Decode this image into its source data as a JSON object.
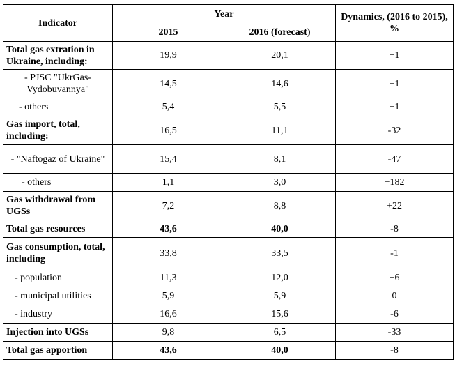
{
  "table": {
    "header": {
      "indicator": "Indicator",
      "year": "Year",
      "y2015": "2015",
      "y2016": "2016 (forecast)",
      "dynamics": "Dynamics, (2016 to 2015), %"
    },
    "rows": [
      {
        "label": "Total gas extration in Ukraine, including:",
        "v2015": "19,9",
        "v2016": "20,1",
        "dyn": "+1"
      },
      {
        "label": "- PJSC \"UkrGas-Vydobuvannya\"",
        "v2015": "14,5",
        "v2016": "14,6",
        "dyn": "+1"
      },
      {
        "label": "- others",
        "v2015": "5,4",
        "v2016": "5,5",
        "dyn": "+1"
      },
      {
        "label": "Gas import, total, including:",
        "v2015": "16,5",
        "v2016": "11,1",
        "dyn": "-32"
      },
      {
        "label": "- \"Naftogaz of Ukraine\"",
        "v2015": "15,4",
        "v2016": "8,1",
        "dyn": "-47"
      },
      {
        "label": "- others",
        "v2015": "1,1",
        "v2016": "3,0",
        "dyn": "+182"
      },
      {
        "label": "Gas withdrawal from UGSs",
        "v2015": "7,2",
        "v2016": "8,8",
        "dyn": "+22"
      },
      {
        "label": "Total gas resources",
        "v2015": "43,6",
        "v2016": "40,0",
        "dyn": "-8"
      },
      {
        "label": "Gas consumption, total, including",
        "v2015": "33,8",
        "v2016": "33,5",
        "dyn": "-1"
      },
      {
        "label": "- population",
        "v2015": "11,3",
        "v2016": "12,0",
        "dyn": "+6"
      },
      {
        "label": "- municipal utilities",
        "v2015": "5,9",
        "v2016": "5,9",
        "dyn": "0"
      },
      {
        "label": "- industry",
        "v2015": "16,6",
        "v2016": "15,6",
        "dyn": "-6"
      },
      {
        "label": "Injection into UGSs",
        "v2015": "9,8",
        "v2016": "6,5",
        "dyn": "-33"
      },
      {
        "label": "Total gas apportion",
        "v2015": "43,6",
        "v2016": "40,0",
        "dyn": "-8"
      }
    ]
  }
}
